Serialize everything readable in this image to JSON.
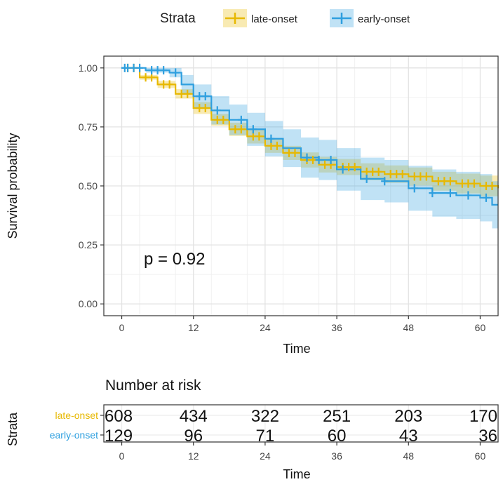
{
  "chart_data": {
    "type": "line",
    "subtype": "kaplan-meier",
    "xlabel": "Time",
    "ylabel": "Survival probability",
    "xlim": [
      -3,
      63
    ],
    "ylim": [
      -0.05,
      1.05
    ],
    "x_ticks": [
      0,
      12,
      24,
      36,
      48,
      60
    ],
    "y_ticks": [
      0,
      0.25,
      0.5,
      0.75,
      1.0
    ],
    "y_tick_labels": [
      "0.00",
      "0.25",
      "0.50",
      "0.75",
      "1.00"
    ],
    "grid": true,
    "legend": {
      "title": "Strata",
      "position": "top"
    },
    "annotation": "p = 0.92",
    "series": [
      {
        "name": "late-onset",
        "color": "#E7B800",
        "fill": "#E7B800",
        "time": [
          0,
          3,
          6,
          9,
          12,
          15,
          18,
          21,
          24,
          27,
          30,
          33,
          36,
          40,
          44,
          48,
          52,
          56,
          60,
          63
        ],
        "surv": [
          1.0,
          0.96,
          0.93,
          0.89,
          0.83,
          0.78,
          0.74,
          0.71,
          0.67,
          0.64,
          0.61,
          0.59,
          0.58,
          0.56,
          0.55,
          0.54,
          0.52,
          0.51,
          0.5,
          0.49
        ],
        "ci_halfwidth": [
          0,
          0.01,
          0.015,
          0.02,
          0.025,
          0.025,
          0.028,
          0.03,
          0.03,
          0.03,
          0.032,
          0.033,
          0.034,
          0.036,
          0.037,
          0.038,
          0.04,
          0.042,
          0.044,
          0.045
        ],
        "censor_times": [
          1,
          2,
          4,
          5,
          7,
          8,
          10,
          11,
          13,
          14,
          16,
          17,
          19,
          20,
          22,
          23,
          25,
          26,
          28,
          29,
          31,
          32,
          34,
          35,
          37,
          38,
          39,
          41,
          42,
          43,
          45,
          46,
          47,
          49,
          50,
          51,
          53,
          54,
          55,
          57,
          58,
          59,
          61,
          62
        ]
      },
      {
        "name": "early-onset",
        "color": "#2E9FDF",
        "fill": "#2E9FDF",
        "time": [
          0,
          4,
          8,
          10,
          12,
          15,
          18,
          21,
          24,
          27,
          30,
          33,
          36,
          40,
          44,
          48,
          52,
          56,
          60,
          62
        ],
        "surv": [
          1.0,
          0.99,
          0.98,
          0.93,
          0.88,
          0.82,
          0.78,
          0.74,
          0.7,
          0.66,
          0.62,
          0.61,
          0.57,
          0.53,
          0.52,
          0.49,
          0.47,
          0.46,
          0.45,
          0.42
        ],
        "ci_halfwidth": [
          0,
          0.01,
          0.02,
          0.04,
          0.05,
          0.06,
          0.065,
          0.07,
          0.075,
          0.08,
          0.085,
          0.085,
          0.09,
          0.09,
          0.09,
          0.095,
          0.1,
          0.1,
          0.1,
          0.1
        ],
        "censor_times": [
          0.5,
          1,
          2,
          3,
          5,
          6,
          7,
          9,
          13,
          14,
          16,
          20,
          22,
          25,
          31,
          33,
          35,
          37,
          41,
          44,
          49,
          52,
          55,
          58,
          61
        ]
      }
    ],
    "risk_table": {
      "title": "Number at risk",
      "ylabel": "Strata",
      "xlabel": "Time",
      "times": [
        0,
        12,
        24,
        36,
        48,
        60
      ],
      "rows": [
        {
          "name": "late-onset",
          "color": "#E7B800",
          "values": [
            "608",
            "434",
            "322",
            "251",
            "203",
            "170"
          ]
        },
        {
          "name": "early-onset",
          "color": "#2E9FDF",
          "values": [
            "129",
            "96",
            "71",
            "60",
            "43",
            "36"
          ]
        }
      ]
    }
  }
}
